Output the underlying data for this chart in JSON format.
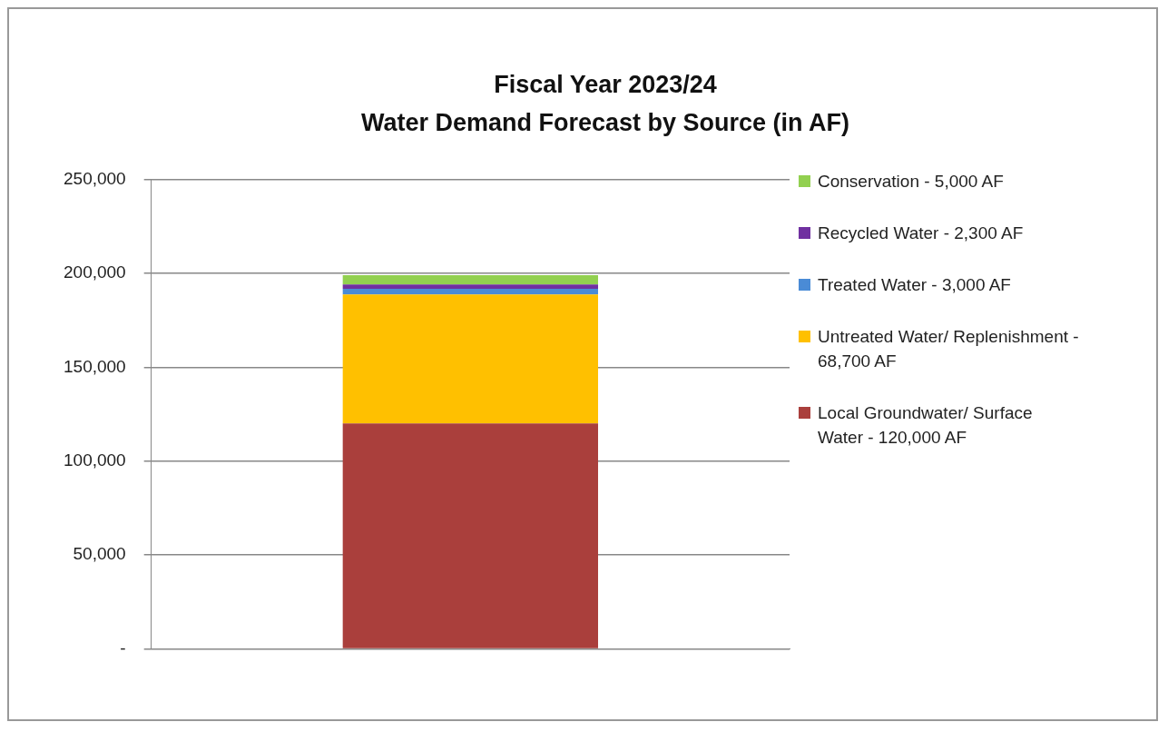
{
  "chart_data": {
    "type": "bar",
    "title": "Fiscal Year 2023/24",
    "subtitle": "Water Demand Forecast by Source (in AF)",
    "categories": [
      null
    ],
    "stacked": true,
    "series": [
      {
        "name": "Local Groundwater/ Surface Water - 120,000 AF",
        "color": "#aa3f3c",
        "values": [
          120000
        ]
      },
      {
        "name": "Untreated Water/ Replenishment - 68,700 AF",
        "color": "#ffc000",
        "values": [
          68700
        ]
      },
      {
        "name": "Treated Water - 3,000 AF",
        "color": "#4a8bd6",
        "values": [
          3000
        ]
      },
      {
        "name": "Recycled Water - 2,300 AF",
        "color": "#7030a0",
        "values": [
          2300
        ]
      },
      {
        "name": "Conservation - 5,000 AF",
        "color": "#92d050",
        "values": [
          5000
        ]
      }
    ],
    "ylim": [
      0,
      250000
    ],
    "yticks": [
      {
        "value": 0,
        "label": "-"
      },
      {
        "value": 50000,
        "label": "50,000"
      },
      {
        "value": 100000,
        "label": "100,000"
      },
      {
        "value": 150000,
        "label": "150,000"
      },
      {
        "value": 200000,
        "label": "200,000"
      },
      {
        "value": 250000,
        "label": "250,000"
      }
    ],
    "grid": "y",
    "legend": "right"
  }
}
